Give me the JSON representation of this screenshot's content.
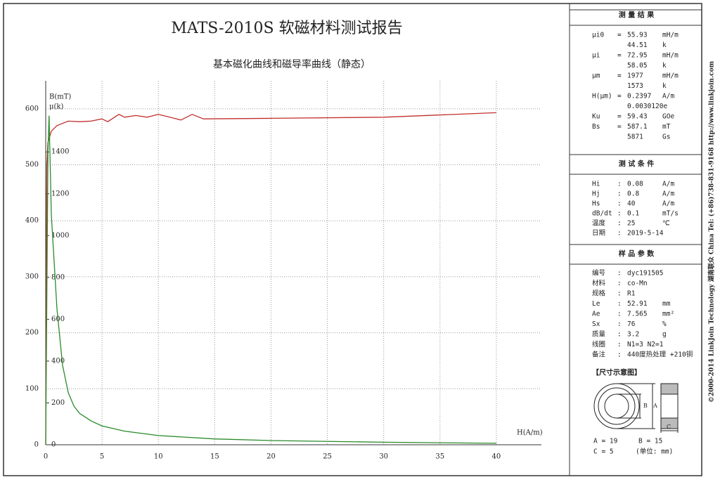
{
  "chart_data": {
    "type": "line",
    "title": "MATS-2010S 软磁材料测试报告",
    "subtitle": "基本磁化曲线和磁导率曲线（静态）",
    "x_label": "H(A/m)",
    "xlim": [
      0,
      44
    ],
    "xticks": [
      0,
      5,
      10,
      15,
      20,
      25,
      30,
      35,
      40
    ],
    "ylim": [
      0,
      650
    ],
    "yticks": [
      0,
      100,
      200,
      300,
      400,
      500,
      600
    ],
    "y2lim": [
      0,
      1740
    ],
    "y2ticks": [
      0,
      200,
      400,
      600,
      800,
      1000,
      1200,
      1400
    ],
    "grid": true,
    "series": [
      {
        "name": "B(mT)",
        "color": "#c0302c",
        "x": [
          0,
          0.05,
          0.1,
          0.2,
          0.5,
          1,
          2,
          3,
          4,
          5,
          5.5,
          6.5,
          7,
          8,
          9,
          10,
          11,
          12,
          13,
          14,
          20,
          30,
          40
        ],
        "values": [
          0,
          300,
          500,
          540,
          560,
          570,
          578,
          577,
          578,
          582,
          577,
          590,
          585,
          588,
          585,
          590,
          585,
          580,
          590,
          582,
          583,
          585,
          593
        ]
      },
      {
        "name": "μ(k)",
        "color": "#2a8a2a",
        "axis": "y2",
        "x": [
          0,
          0.2,
          0.3,
          0.5,
          1,
          1.5,
          2,
          2.5,
          3,
          4,
          5,
          7,
          10,
          15,
          20,
          30,
          40
        ],
        "values": [
          0,
          1400,
          1573,
          1100,
          650,
          380,
          250,
          185,
          150,
          115,
          90,
          65,
          44,
          28,
          20,
          12,
          7
        ]
      }
    ]
  },
  "panel": {
    "results": {
      "title": "测 量 结 果",
      "rows": [
        {
          "label": "μi0",
          "sep": "=",
          "value": "55.93",
          "unit": "mH/m"
        },
        {
          "value": "44.51",
          "unit": "k"
        },
        {
          "label": "μi",
          "sep": "=",
          "value": "72.95",
          "unit": "mH/m"
        },
        {
          "value": "58.05",
          "unit": "k"
        },
        {
          "label": "μm",
          "sep": "=",
          "value": "1977",
          "unit": "mH/m"
        },
        {
          "value": "1573",
          "unit": "k"
        },
        {
          "label": "H(μm)",
          "sep": "=",
          "value": "0.2397",
          "unit": "A/m"
        },
        {
          "value": "0.0030120e"
        },
        {
          "label": "Ku",
          "sep": "=",
          "value": "59.43",
          "unit": "GOe"
        },
        {
          "label": "Bs",
          "sep": "=",
          "value": "587.1",
          "unit": "mT"
        },
        {
          "value": "5871",
          "unit": "Gs"
        }
      ]
    },
    "conditions": {
      "title": "测 试 条 件",
      "rows": [
        {
          "label": "Hi",
          "sep": ":",
          "value": "0.08",
          "unit": "A/m"
        },
        {
          "label": "Hj",
          "sep": ":",
          "value": "0.8",
          "unit": "A/m"
        },
        {
          "label": "Hs",
          "sep": ":",
          "value": "40",
          "unit": "A/m"
        },
        {
          "label": "dB/dt",
          "sep": ":",
          "value": "0.1",
          "unit": "mT/s"
        },
        {
          "label": "温度",
          "sep": ":",
          "value": "25",
          "unit": "℃"
        },
        {
          "label": "日期",
          "sep": ":",
          "value": "2019-5-14"
        }
      ]
    },
    "sample": {
      "title": "样 品 参 数",
      "rows": [
        {
          "label": "编号",
          "sep": ":",
          "value": "dyc191505"
        },
        {
          "label": "材料",
          "sep": ":",
          "value": "co-Mn"
        },
        {
          "label": "规格",
          "sep": ":",
          "value": "R1"
        },
        {
          "label": "Le",
          "sep": ":",
          "value": "52.91",
          "unit": "mm"
        },
        {
          "label": "Ae",
          "sep": ":",
          "value": "7.565",
          "unit": "mm²"
        },
        {
          "label": "Sx",
          "sep": ":",
          "value": "76",
          "unit": "%"
        },
        {
          "label": "质量",
          "sep": ":",
          "value": "3.2",
          "unit": "g"
        },
        {
          "label": "线圈",
          "sep": ":",
          "value": "N1=3 N2=1"
        },
        {
          "label": "备注",
          "sep": ":",
          "value": "440度热处理 +210铜"
        }
      ]
    },
    "diagram": {
      "title": "【尺寸示意图】",
      "marks": [
        "B",
        "A",
        "C"
      ],
      "dims": [
        "A = 19",
        "B = 15",
        "C = 5",
        "(单位: mm)"
      ]
    },
    "side_text": "©2000-2014 LinkJoin Technology 湖南联众 China   Tel: (+86)738-831-9168   http://www.linkjoin.com"
  }
}
